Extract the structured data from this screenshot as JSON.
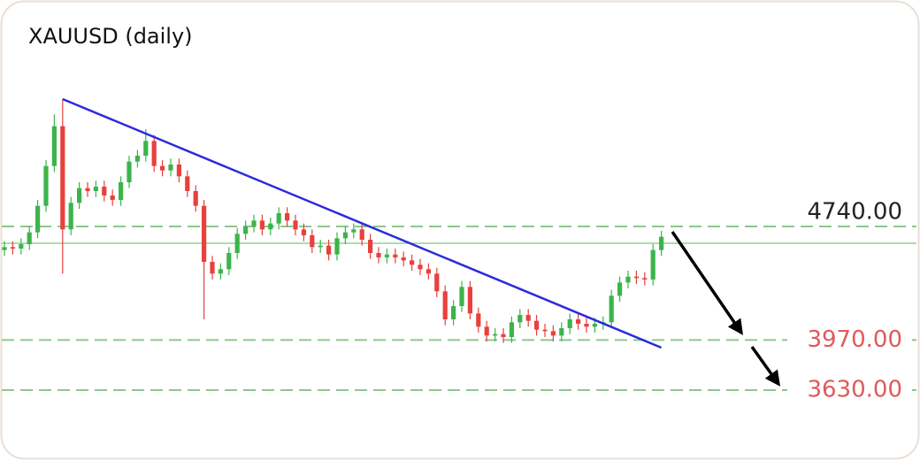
{
  "chart_data": {
    "type": "candlestick",
    "title": "XAUUSD (daily)",
    "ylim": [
      3300,
      6100
    ],
    "up_color": "#3bb54a",
    "down_color": "#e8413c",
    "open": [
      4580,
      4600,
      4590,
      4620,
      4700,
      4880,
      5150,
      5420,
      4720,
      4900,
      5000,
      4980,
      5010,
      4950,
      4920,
      5040,
      5180,
      5220,
      5320,
      5150,
      5120,
      5160,
      5080,
      4980,
      4880,
      4500,
      4420,
      4450,
      4560,
      4690,
      4740,
      4780,
      4720,
      4760,
      4830,
      4780,
      4720,
      4680,
      4600,
      4610,
      4550,
      4660,
      4700,
      4720,
      4650,
      4560,
      4530,
      4550,
      4530,
      4510,
      4480,
      4450,
      4420,
      4300,
      4110,
      4200,
      4330,
      4150,
      4060,
      4000,
      4010,
      3990,
      4090,
      4140,
      4100,
      4040,
      4030,
      4000,
      4050,
      4110,
      4080,
      4060,
      4080,
      4090,
      4270,
      4360,
      4400,
      4390,
      4380,
      4580
    ],
    "high": [
      4640,
      4640,
      4660,
      4740,
      4920,
      5190,
      5500,
      5604,
      4940,
      5040,
      5040,
      5050,
      5050,
      4990,
      5080,
      5220,
      5260,
      5400,
      5360,
      5190,
      5200,
      5200,
      5120,
      5020,
      4920,
      4540,
      4490,
      4600,
      4730,
      4780,
      4820,
      4820,
      4800,
      4870,
      4870,
      4820,
      4760,
      4720,
      4650,
      4650,
      4700,
      4740,
      4760,
      4760,
      4690,
      4600,
      4590,
      4590,
      4570,
      4550,
      4520,
      4490,
      4460,
      4340,
      4240,
      4370,
      4370,
      4190,
      4100,
      4050,
      4050,
      4130,
      4180,
      4180,
      4140,
      4080,
      4070,
      4090,
      4150,
      4150,
      4120,
      4120,
      4130,
      4310,
      4400,
      4440,
      4440,
      4430,
      4620,
      4710
    ],
    "low": [
      4540,
      4550,
      4550,
      4580,
      4660,
      4840,
      5110,
      4420,
      4680,
      4860,
      4940,
      4940,
      4910,
      4880,
      4880,
      5000,
      5140,
      5180,
      5110,
      5080,
      5080,
      5040,
      4940,
      4840,
      4110,
      4380,
      4380,
      4410,
      4520,
      4650,
      4700,
      4680,
      4680,
      4720,
      4740,
      4680,
      4640,
      4560,
      4560,
      4510,
      4510,
      4620,
      4660,
      4610,
      4520,
      4490,
      4490,
      4490,
      4470,
      4440,
      4410,
      4380,
      4260,
      4070,
      4070,
      4160,
      4110,
      4020,
      3960,
      3960,
      3950,
      3950,
      4050,
      4060,
      4000,
      3990,
      3960,
      3960,
      4010,
      4040,
      4020,
      4020,
      4040,
      4050,
      4230,
      4320,
      4350,
      4340,
      4340,
      4540
    ],
    "close": [
      4600,
      4590,
      4620,
      4700,
      4880,
      5150,
      5420,
      4720,
      4900,
      5000,
      4980,
      5010,
      4950,
      4920,
      5040,
      5180,
      5220,
      5320,
      5150,
      5120,
      5160,
      5080,
      4980,
      4880,
      4500,
      4420,
      4450,
      4560,
      4690,
      4740,
      4780,
      4720,
      4760,
      4830,
      4780,
      4720,
      4680,
      4600,
      4610,
      4550,
      4660,
      4700,
      4720,
      4650,
      4560,
      4530,
      4550,
      4530,
      4510,
      4480,
      4450,
      4420,
      4300,
      4110,
      4200,
      4330,
      4150,
      4060,
      4000,
      4010,
      3990,
      4090,
      4140,
      4100,
      4040,
      4030,
      4000,
      4050,
      4110,
      4080,
      4060,
      4080,
      4090,
      4270,
      4360,
      4400,
      4390,
      4380,
      4580,
      4670
    ],
    "price_line": {
      "value": 4626,
      "color": "#5cb85c"
    },
    "levels": [
      {
        "value": 4740,
        "label": "4740.00",
        "color": "#222222"
      },
      {
        "value": 3970,
        "label": "3970.00",
        "color": "#e05a5a"
      },
      {
        "value": 3630,
        "label": "3630.00",
        "color": "#e05a5a"
      }
    ],
    "level_line_color": "#8cc88c",
    "trendline": {
      "x": [
        7,
        79
      ],
      "y": [
        5604,
        3918
      ],
      "color": "#2b2bdc"
    }
  }
}
